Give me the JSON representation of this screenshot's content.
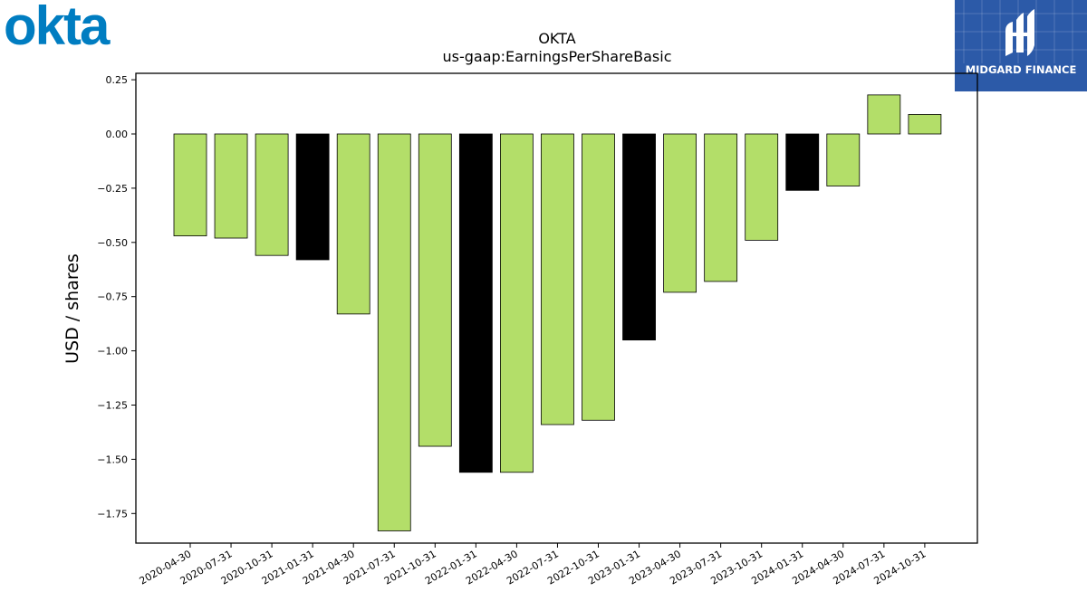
{
  "logos": {
    "okta_wordmark": "okta",
    "midgard_name": "MIDGARD FINANCE"
  },
  "colors": {
    "fiscal_q_bar": "#b3de69",
    "fiscal_year_bar": "#000000",
    "okta_blue": "#007dc1",
    "midgard_blue": "#2c5aa8"
  },
  "chart_data": {
    "type": "bar",
    "title": "OKTA",
    "subtitle": "us-gaap:EarningsPerShareBasic",
    "xlabel": "",
    "ylabel": "USD / shares",
    "ylim": [
      -1.9,
      0.28
    ],
    "yticks": [
      0.25,
      0.0,
      -0.25,
      -0.5,
      -0.75,
      -1.0,
      -1.25,
      -1.5,
      -1.75
    ],
    "ytick_labels": [
      "0.25",
      "0.00",
      "−0.25",
      "−0.50",
      "−0.75",
      "−1.00",
      "−1.25",
      "−1.50",
      "−1.75"
    ],
    "grid": false,
    "legend": "none",
    "categories": [
      "2020-04-30",
      "2020-07-31",
      "2020-10-31",
      "2021-01-31",
      "2021-04-30",
      "2021-07-31",
      "2021-10-31",
      "2022-01-31",
      "2022-04-30",
      "2022-07-31",
      "2022-10-31",
      "2023-01-31",
      "2023-04-30",
      "2023-07-31",
      "2023-10-31",
      "2024-01-31",
      "2024-04-30",
      "2024-07-31",
      "2024-10-31"
    ],
    "values": [
      -0.47,
      -0.48,
      -0.56,
      -0.58,
      -0.83,
      -1.83,
      -1.44,
      -1.56,
      -1.56,
      -1.34,
      -1.32,
      -0.95,
      -0.73,
      -0.68,
      -0.49,
      -0.26,
      -0.24,
      0.18,
      0.09
    ],
    "bar_colors": [
      "#b3de69",
      "#b3de69",
      "#b3de69",
      "#000000",
      "#b3de69",
      "#b3de69",
      "#b3de69",
      "#000000",
      "#b3de69",
      "#b3de69",
      "#b3de69",
      "#000000",
      "#b3de69",
      "#b3de69",
      "#b3de69",
      "#000000",
      "#b3de69",
      "#b3de69",
      "#b3de69"
    ]
  }
}
